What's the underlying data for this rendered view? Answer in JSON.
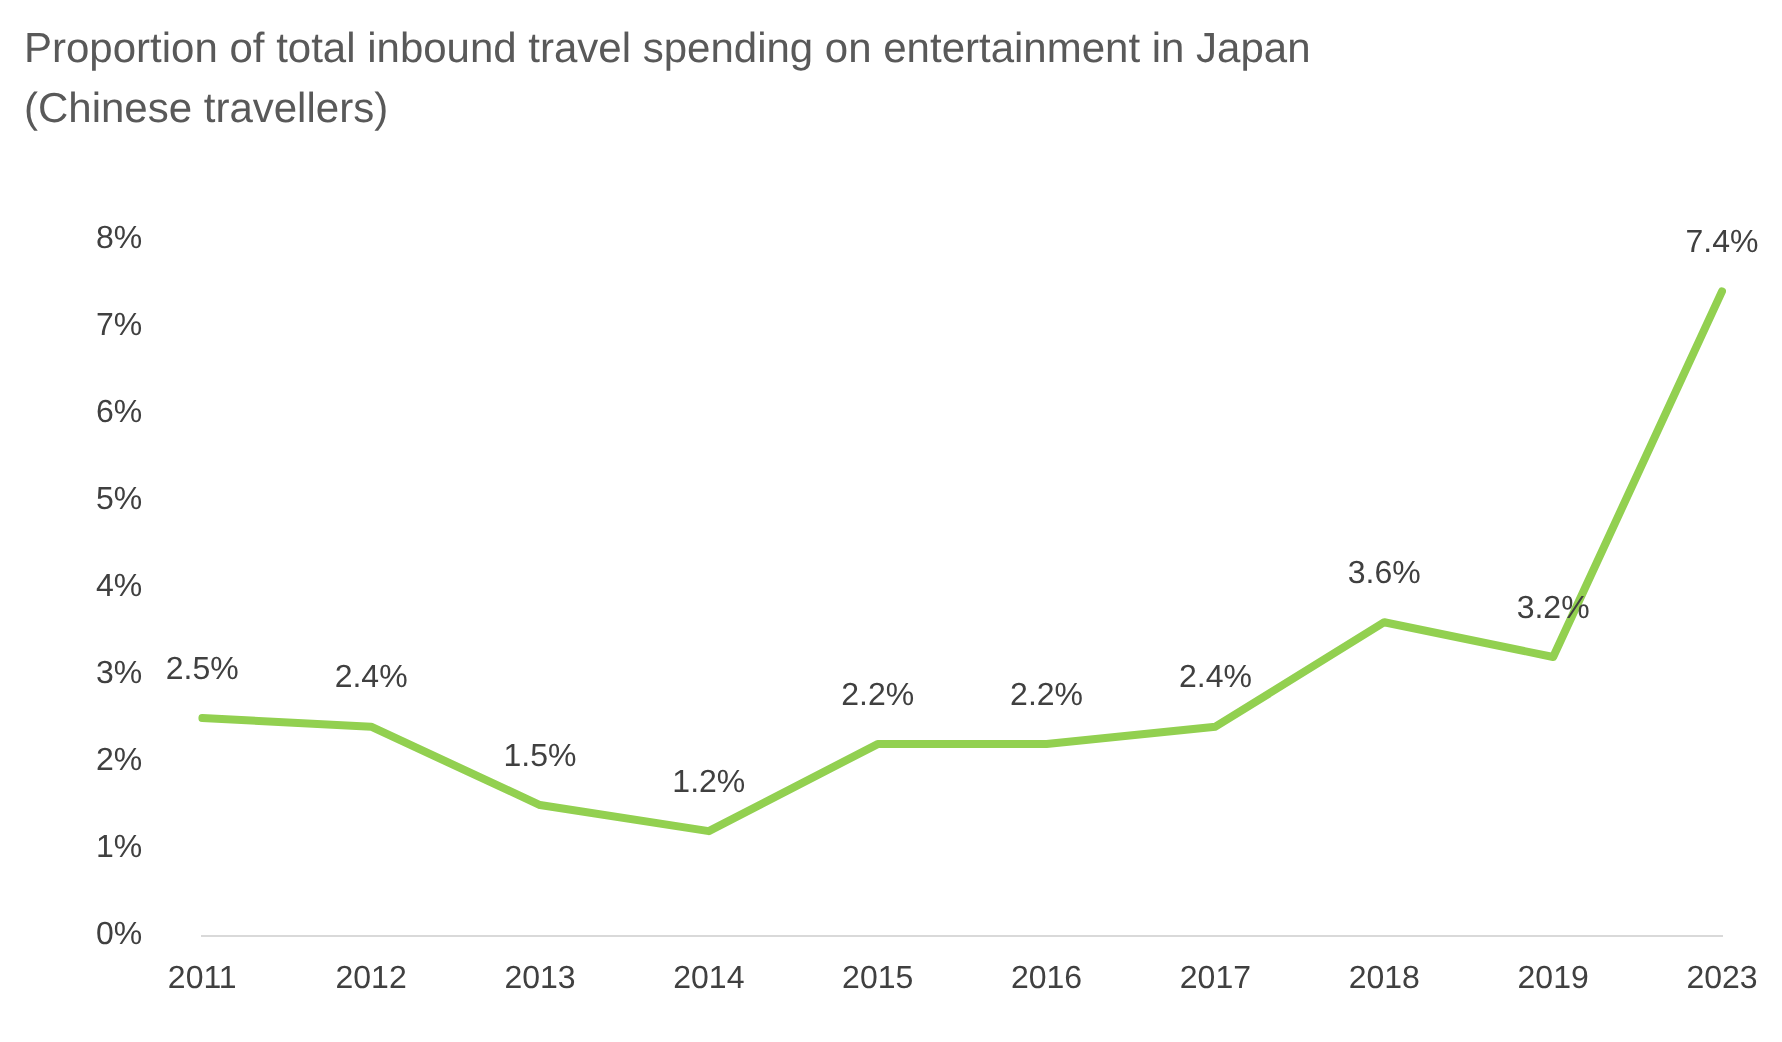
{
  "chart_data": {
    "type": "line",
    "title": "Proportion of total inbound travel spending on entertainment in Japan (Chinese travellers)",
    "categories": [
      "2011",
      "2012",
      "2013",
      "2014",
      "2015",
      "2016",
      "2017",
      "2018",
      "2019",
      "2023"
    ],
    "series": [
      {
        "color": "#92d050",
        "values": [
          2.5,
          2.4,
          1.5,
          1.2,
          2.2,
          2.2,
          2.4,
          3.6,
          3.2,
          7.4
        ]
      }
    ],
    "ylim": [
      0,
      8
    ],
    "yticks": [
      {
        "value": 0,
        "label": "0%"
      },
      {
        "value": 1,
        "label": "1%"
      },
      {
        "value": 2,
        "label": "2%"
      },
      {
        "value": 3,
        "label": "3%"
      },
      {
        "value": 4,
        "label": "4%"
      },
      {
        "value": 5,
        "label": "5%"
      },
      {
        "value": 6,
        "label": "6%"
      },
      {
        "value": 7,
        "label": "7%"
      },
      {
        "value": 8,
        "label": "8%"
      }
    ],
    "value_labels": [
      "2.5%",
      "2.4%",
      "1.5%",
      "1.2%",
      "2.2%",
      "2.2%",
      "2.4%",
      "3.6%",
      "3.2%",
      "7.4%"
    ],
    "grid": false,
    "legend": false,
    "marker": "none",
    "line_style": "solid"
  }
}
